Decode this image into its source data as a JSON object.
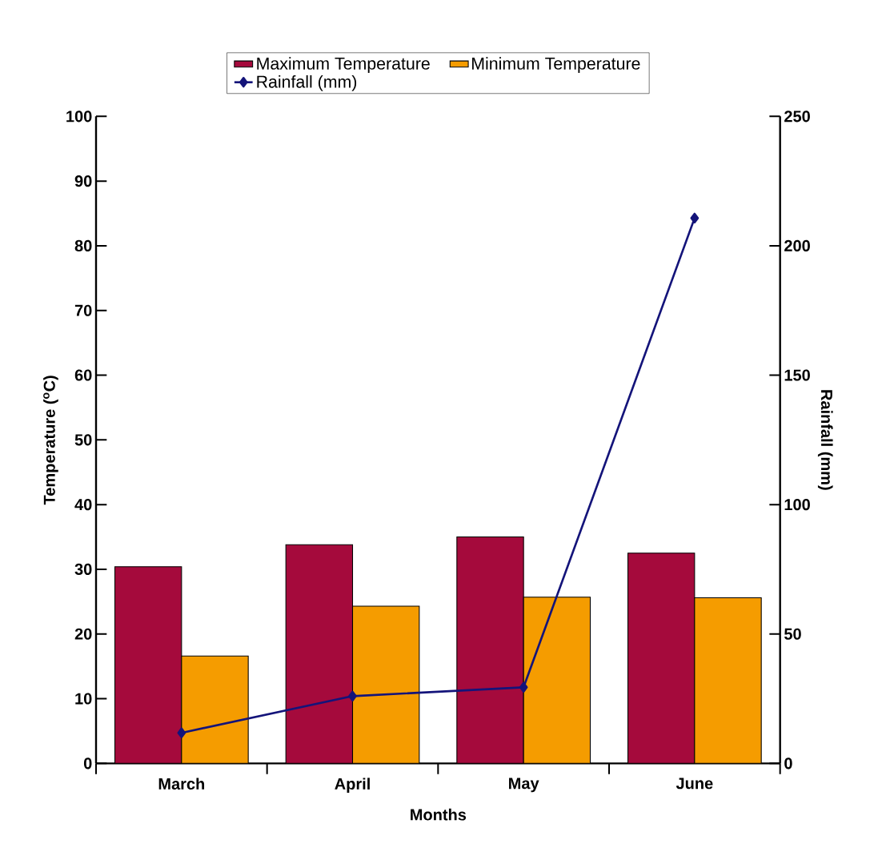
{
  "chart_data": {
    "type": "bar",
    "categories": [
      "March",
      "April",
      "May",
      "June"
    ],
    "xlabel": "Months",
    "ylabel": "Temperature ($^{o}$C)",
    "y2label": "Rainfall (mm)",
    "ylim": [
      0,
      100
    ],
    "yticks": [
      0,
      10,
      20,
      30,
      40,
      50,
      60,
      70,
      80,
      90,
      100
    ],
    "y2lim": [
      0,
      250
    ],
    "y2ticks": [
      0,
      50,
      100,
      150,
      200,
      250
    ],
    "legend": "top",
    "marker": "diamond",
    "series": [
      {
        "name": "Maximum Temperature",
        "color": "#a50a3c",
        "values": [
          30.4,
          33.8,
          35.0,
          32.5
        ]
      },
      {
        "name": "Minimum Temperature",
        "color": "#f59c00",
        "values": [
          16.6,
          24.3,
          25.7,
          25.6
        ]
      },
      {
        "name": "Rainfall (mm)",
        "type": "line",
        "axis": "y2",
        "color": "#14147a",
        "values": [
          11.8,
          26,
          29.4,
          210.7
        ]
      }
    ]
  }
}
